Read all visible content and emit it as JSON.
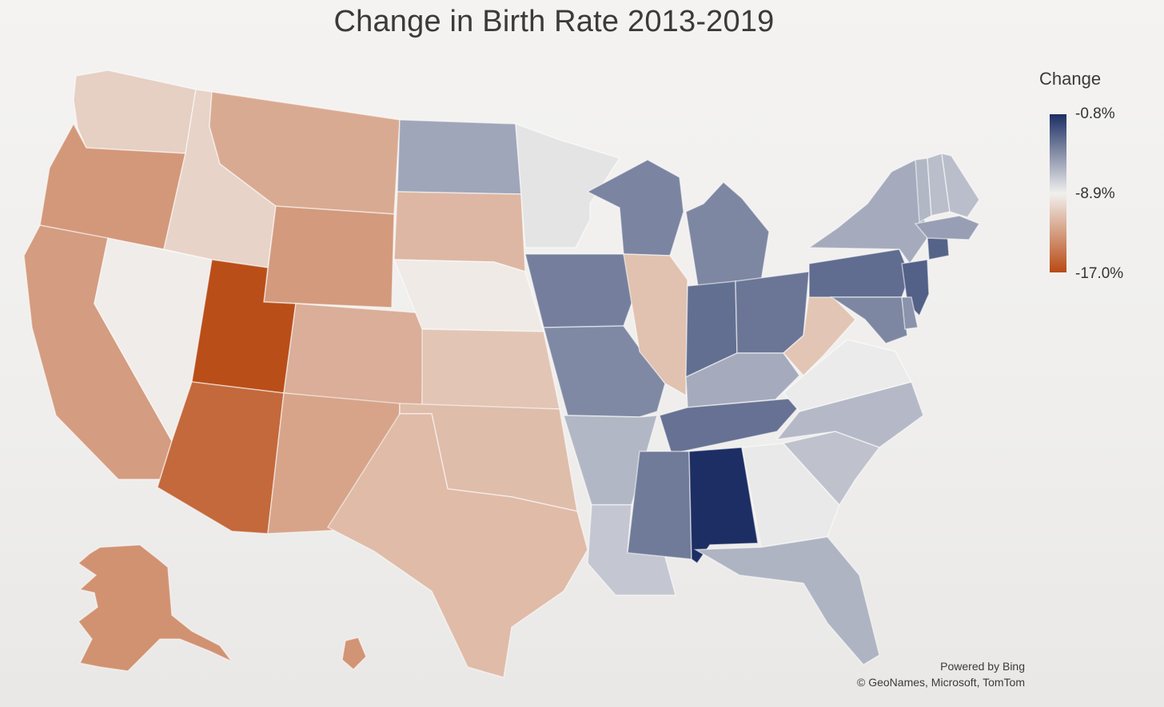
{
  "map_title": "Change in Birth Rate 2013-2019",
  "legend": {
    "title": "Change",
    "max_label": "-0.8%",
    "mid_label": "-8.9%",
    "min_label": "-17.0%",
    "scale_min": -17.0,
    "scale_mid": -8.9,
    "scale_max": -0.8,
    "color_max": "#1c2e63",
    "color_mid": "#f1f0ee",
    "color_min": "#b84a14"
  },
  "attribution": {
    "line1": "Powered by Bing",
    "line2": "© GeoNames, Microsoft, TomTom"
  },
  "regions": [
    {
      "key": "WA",
      "change": -10.5
    },
    {
      "key": "OR",
      "change": -13.2
    },
    {
      "key": "CA",
      "change": -13.0
    },
    {
      "key": "NV",
      "change": -9.1
    },
    {
      "key": "ID",
      "change": -10.3
    },
    {
      "key": "MT",
      "change": -12.3
    },
    {
      "key": "WY",
      "change": -13.1
    },
    {
      "key": "UT",
      "change": -16.8
    },
    {
      "key": "AZ",
      "change": -15.5
    },
    {
      "key": "CO",
      "change": -12.1
    },
    {
      "key": "NM",
      "change": -12.6
    },
    {
      "key": "ND",
      "change": -5.8
    },
    {
      "key": "SD",
      "change": -11.7
    },
    {
      "key": "NE",
      "change": -9.2
    },
    {
      "key": "KS",
      "change": -11.0
    },
    {
      "key": "OK",
      "change": -11.4
    },
    {
      "key": "TX",
      "change": -11.5
    },
    {
      "key": "MN",
      "change": -8.4
    },
    {
      "key": "IA",
      "change": -4.2
    },
    {
      "key": "MO",
      "change": -4.6
    },
    {
      "key": "AR",
      "change": -6.5
    },
    {
      "key": "LA",
      "change": -7.2
    },
    {
      "key": "WI",
      "change": -4.4
    },
    {
      "key": "IL",
      "change": -11.2
    },
    {
      "key": "MI",
      "change": -4.5
    },
    {
      "key": "IN",
      "change": -3.5
    },
    {
      "key": "OH",
      "change": -3.8
    },
    {
      "key": "KY",
      "change": -6.0
    },
    {
      "key": "TN",
      "change": -3.6
    },
    {
      "key": "MS",
      "change": -4.0
    },
    {
      "key": "AL",
      "change": -0.8
    },
    {
      "key": "GA",
      "change": -8.6
    },
    {
      "key": "FL",
      "change": -6.4
    },
    {
      "key": "SC",
      "change": -7.0
    },
    {
      "key": "NC",
      "change": -6.6
    },
    {
      "key": "VA",
      "change": -8.7
    },
    {
      "key": "WV",
      "change": -11.0
    },
    {
      "key": "PA",
      "change": -3.4
    },
    {
      "key": "NY",
      "change": -6.0
    },
    {
      "key": "NJ",
      "change": -2.9
    },
    {
      "key": "MD",
      "change": -4.5
    },
    {
      "key": "DE",
      "change": -5.0
    },
    {
      "key": "CT",
      "change": -3.0
    },
    {
      "key": "MA",
      "change": -5.5
    },
    {
      "key": "VT",
      "change": -6.5
    },
    {
      "key": "NH",
      "change": -6.8
    },
    {
      "key": "ME",
      "change": -6.8
    },
    {
      "key": "AK",
      "change": -13.5
    },
    {
      "key": "HI",
      "change": -13.4
    }
  ]
}
